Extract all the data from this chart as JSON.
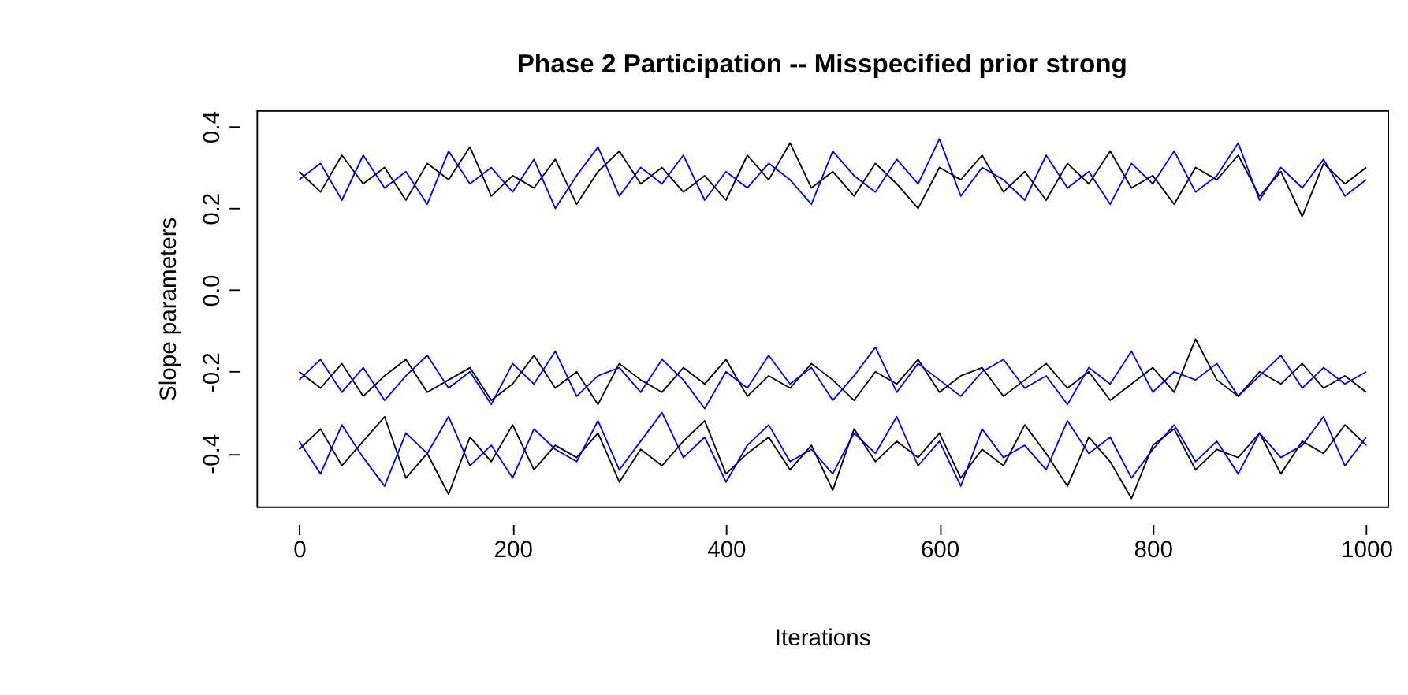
{
  "chart_data": {
    "type": "line",
    "title": "Phase 2 Participation -- Misspecified prior strong",
    "xlabel": "Iterations",
    "ylabel": "Slope parameters",
    "x": [
      0,
      20,
      40,
      60,
      80,
      100,
      120,
      140,
      160,
      180,
      200,
      220,
      240,
      260,
      280,
      300,
      320,
      340,
      360,
      380,
      400,
      420,
      440,
      460,
      480,
      500,
      520,
      540,
      560,
      580,
      600,
      620,
      640,
      660,
      680,
      700,
      720,
      740,
      760,
      780,
      800,
      820,
      840,
      860,
      880,
      900,
      920,
      940,
      960,
      980,
      1000
    ],
    "series": [
      {
        "color": "#000000",
        "values": [
          0.29,
          0.24,
          0.33,
          0.26,
          0.3,
          0.22,
          0.31,
          0.27,
          0.35,
          0.23,
          0.28,
          0.25,
          0.32,
          0.21,
          0.29,
          0.34,
          0.26,
          0.3,
          0.24,
          0.28,
          0.22,
          0.33,
          0.27,
          0.36,
          0.25,
          0.29,
          0.23,
          0.31,
          0.26,
          0.2,
          0.3,
          0.27,
          0.33,
          0.24,
          0.29,
          0.22,
          0.31,
          0.26,
          0.34,
          0.25,
          0.28,
          0.21,
          0.3,
          0.27,
          0.33,
          0.23,
          0.29,
          0.18,
          0.31,
          0.26,
          0.3
        ]
      },
      {
        "color": "#0000ff",
        "values": [
          0.27,
          0.31,
          0.22,
          0.33,
          0.25,
          0.29,
          0.21,
          0.34,
          0.26,
          0.3,
          0.24,
          0.32,
          0.2,
          0.28,
          0.35,
          0.23,
          0.3,
          0.26,
          0.33,
          0.22,
          0.29,
          0.25,
          0.31,
          0.27,
          0.21,
          0.34,
          0.28,
          0.24,
          0.32,
          0.26,
          0.37,
          0.23,
          0.3,
          0.27,
          0.22,
          0.33,
          0.25,
          0.29,
          0.21,
          0.31,
          0.26,
          0.34,
          0.24,
          0.28,
          0.36,
          0.22,
          0.3,
          0.25,
          0.32,
          0.23,
          0.27
        ]
      },
      {
        "color": "#000000",
        "values": [
          -0.2,
          -0.24,
          -0.18,
          -0.26,
          -0.21,
          -0.17,
          -0.25,
          -0.22,
          -0.19,
          -0.27,
          -0.23,
          -0.16,
          -0.24,
          -0.2,
          -0.28,
          -0.18,
          -0.22,
          -0.25,
          -0.19,
          -0.23,
          -0.17,
          -0.26,
          -0.21,
          -0.24,
          -0.18,
          -0.22,
          -0.27,
          -0.2,
          -0.23,
          -0.17,
          -0.25,
          -0.21,
          -0.19,
          -0.26,
          -0.22,
          -0.18,
          -0.24,
          -0.2,
          -0.27,
          -0.23,
          -0.19,
          -0.25,
          -0.12,
          -0.22,
          -0.26,
          -0.2,
          -0.23,
          -0.18,
          -0.24,
          -0.21,
          -0.25
        ]
      },
      {
        "color": "#0000ff",
        "values": [
          -0.22,
          -0.17,
          -0.25,
          -0.19,
          -0.27,
          -0.21,
          -0.16,
          -0.24,
          -0.2,
          -0.28,
          -0.18,
          -0.23,
          -0.15,
          -0.26,
          -0.21,
          -0.19,
          -0.25,
          -0.17,
          -0.22,
          -0.29,
          -0.2,
          -0.24,
          -0.16,
          -0.23,
          -0.19,
          -0.27,
          -0.21,
          -0.14,
          -0.25,
          -0.18,
          -0.22,
          -0.26,
          -0.2,
          -0.17,
          -0.24,
          -0.21,
          -0.28,
          -0.19,
          -0.23,
          -0.15,
          -0.25,
          -0.2,
          -0.22,
          -0.18,
          -0.26,
          -0.21,
          -0.16,
          -0.24,
          -0.19,
          -0.23,
          -0.2
        ]
      },
      {
        "color": "#000000",
        "values": [
          -0.39,
          -0.34,
          -0.43,
          -0.37,
          -0.31,
          -0.46,
          -0.4,
          -0.5,
          -0.36,
          -0.42,
          -0.33,
          -0.44,
          -0.38,
          -0.41,
          -0.35,
          -0.47,
          -0.39,
          -0.43,
          -0.37,
          -0.32,
          -0.45,
          -0.4,
          -0.36,
          -0.44,
          -0.38,
          -0.49,
          -0.34,
          -0.42,
          -0.37,
          -0.41,
          -0.35,
          -0.46,
          -0.39,
          -0.43,
          -0.33,
          -0.4,
          -0.48,
          -0.36,
          -0.42,
          -0.51,
          -0.38,
          -0.34,
          -0.44,
          -0.39,
          -0.41,
          -0.35,
          -0.45,
          -0.37,
          -0.4,
          -0.33,
          -0.38
        ]
      },
      {
        "color": "#0000ff",
        "values": [
          -0.37,
          -0.45,
          -0.33,
          -0.41,
          -0.48,
          -0.35,
          -0.4,
          -0.31,
          -0.43,
          -0.38,
          -0.46,
          -0.34,
          -0.39,
          -0.42,
          -0.32,
          -0.44,
          -0.37,
          -0.3,
          -0.41,
          -0.36,
          -0.47,
          -0.38,
          -0.33,
          -0.42,
          -0.39,
          -0.45,
          -0.35,
          -0.4,
          -0.31,
          -0.43,
          -0.37,
          -0.48,
          -0.34,
          -0.41,
          -0.38,
          -0.44,
          -0.32,
          -0.4,
          -0.36,
          -0.46,
          -0.39,
          -0.33,
          -0.42,
          -0.37,
          -0.45,
          -0.35,
          -0.41,
          -0.38,
          -0.31,
          -0.43,
          -0.36
        ]
      }
    ],
    "xlim": [
      -40,
      1020
    ],
    "ylim": [
      -0.53,
      0.44
    ],
    "xticks": [
      0,
      200,
      400,
      600,
      800,
      1000
    ],
    "yticks": [
      {
        "value": -0.4,
        "label": "-0.4"
      },
      {
        "value": -0.2,
        "label": "-0.2"
      },
      {
        "value": 0,
        "label": "0.0"
      },
      {
        "value": 0.2,
        "label": "0.2"
      },
      {
        "value": 0.4,
        "label": "0.4"
      }
    ],
    "grid": false,
    "legend": false,
    "line_style": "solid",
    "marker": "none"
  }
}
